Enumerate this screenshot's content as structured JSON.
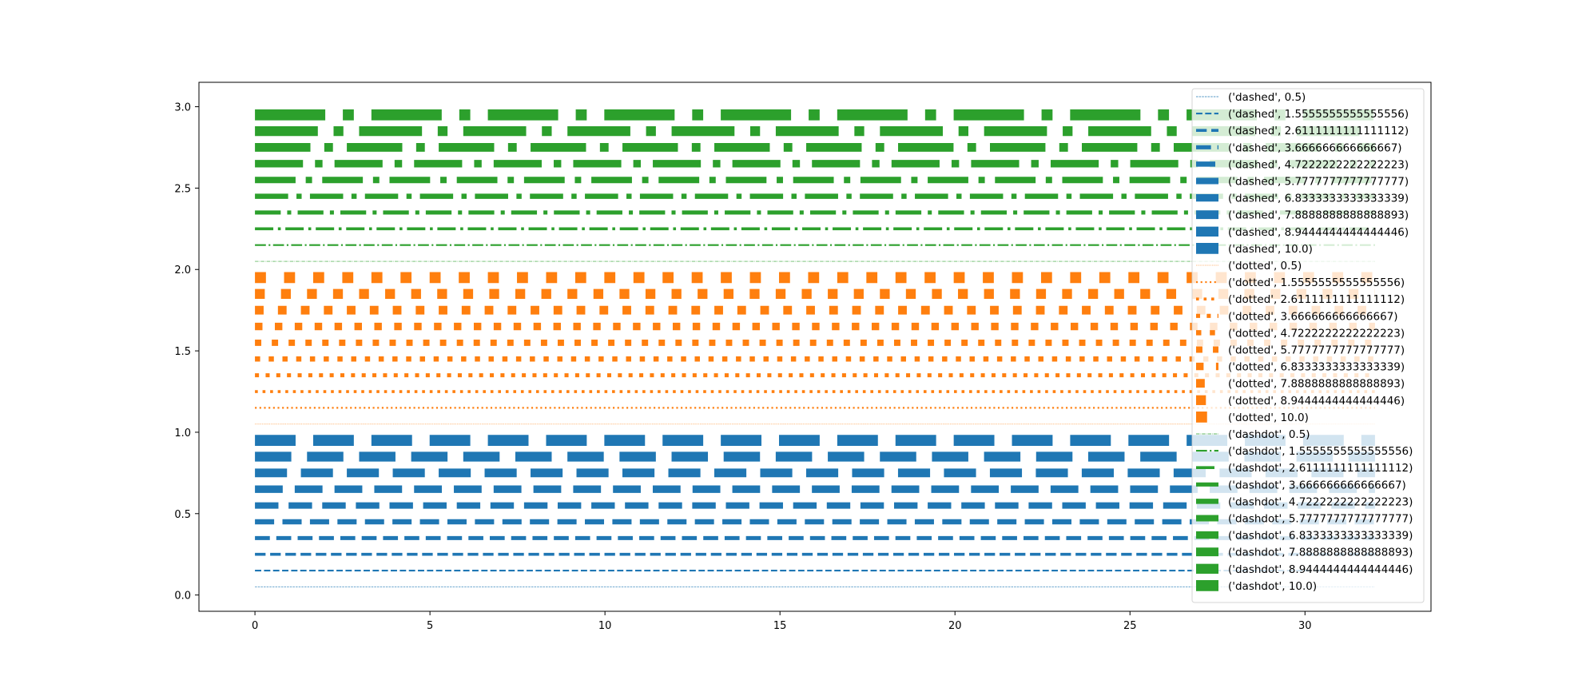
{
  "chart_data": {
    "type": "line",
    "title": "",
    "xlabel": "",
    "ylabel": "",
    "xlim": [
      -1.6,
      33.6
    ],
    "ylim": [
      -0.1,
      3.15
    ],
    "x": [
      0,
      32
    ],
    "xticks": [
      0,
      5,
      10,
      15,
      20,
      25,
      30
    ],
    "yticks": [
      0.0,
      0.5,
      1.0,
      1.5,
      2.0,
      2.5,
      3.0
    ],
    "xtick_labels": [
      "0",
      "5",
      "10",
      "15",
      "20",
      "25",
      "30"
    ],
    "ytick_labels": [
      "0.0",
      "0.5",
      "1.0",
      "1.5",
      "2.0",
      "2.5",
      "3.0"
    ],
    "grid": false,
    "legend_position": "right",
    "colors": {
      "dashed": "#1f77b4",
      "dotted": "#ff7f0e",
      "dashdot": "#2ca02c"
    },
    "series": [
      {
        "name": "('dashed', 0.5)",
        "style": "dashed",
        "linewidth": 0.5,
        "y": 0.05
      },
      {
        "name": "('dashed', 1.5555555555555556)",
        "style": "dashed",
        "linewidth": 1.5555555555555556,
        "y": 0.15
      },
      {
        "name": "('dashed', 2.6111111111111112)",
        "style": "dashed",
        "linewidth": 2.611111111111111,
        "y": 0.25
      },
      {
        "name": "('dashed', 3.666666666666667)",
        "style": "dashed",
        "linewidth": 3.666666666666667,
        "y": 0.35
      },
      {
        "name": "('dashed', 4.7222222222222223)",
        "style": "dashed",
        "linewidth": 4.722222222222222,
        "y": 0.45
      },
      {
        "name": "('dashed', 5.7777777777777777)",
        "style": "dashed",
        "linewidth": 5.777777777777778,
        "y": 0.55
      },
      {
        "name": "('dashed', 6.8333333333333339)",
        "style": "dashed",
        "linewidth": 6.833333333333334,
        "y": 0.65
      },
      {
        "name": "('dashed', 7.8888888888888893)",
        "style": "dashed",
        "linewidth": 7.888888888888889,
        "y": 0.75
      },
      {
        "name": "('dashed', 8.9444444444444446)",
        "style": "dashed",
        "linewidth": 8.944444444444445,
        "y": 0.85
      },
      {
        "name": "('dashed', 10.0)",
        "style": "dashed",
        "linewidth": 10.0,
        "y": 0.95
      },
      {
        "name": "('dotted', 0.5)",
        "style": "dotted",
        "linewidth": 0.5,
        "y": 1.05
      },
      {
        "name": "('dotted', 1.5555555555555556)",
        "style": "dotted",
        "linewidth": 1.5555555555555556,
        "y": 1.15
      },
      {
        "name": "('dotted', 2.6111111111111112)",
        "style": "dotted",
        "linewidth": 2.611111111111111,
        "y": 1.25
      },
      {
        "name": "('dotted', 3.666666666666667)",
        "style": "dotted",
        "linewidth": 3.666666666666667,
        "y": 1.35
      },
      {
        "name": "('dotted', 4.7222222222222223)",
        "style": "dotted",
        "linewidth": 4.722222222222222,
        "y": 1.45
      },
      {
        "name": "('dotted', 5.7777777777777777)",
        "style": "dotted",
        "linewidth": 5.777777777777778,
        "y": 1.55
      },
      {
        "name": "('dotted', 6.8333333333333339)",
        "style": "dotted",
        "linewidth": 6.833333333333334,
        "y": 1.65
      },
      {
        "name": "('dotted', 7.8888888888888893)",
        "style": "dotted",
        "linewidth": 7.888888888888889,
        "y": 1.75
      },
      {
        "name": "('dotted', 8.9444444444444446)",
        "style": "dotted",
        "linewidth": 8.944444444444445,
        "y": 1.85
      },
      {
        "name": "('dotted', 10.0)",
        "style": "dotted",
        "linewidth": 10.0,
        "y": 1.95
      },
      {
        "name": "('dashdot', 0.5)",
        "style": "dashdot",
        "linewidth": 0.5,
        "y": 2.05
      },
      {
        "name": "('dashdot', 1.5555555555555556)",
        "style": "dashdot",
        "linewidth": 1.5555555555555556,
        "y": 2.15
      },
      {
        "name": "('dashdot', 2.6111111111111112)",
        "style": "dashdot",
        "linewidth": 2.611111111111111,
        "y": 2.25
      },
      {
        "name": "('dashdot', 3.666666666666667)",
        "style": "dashdot",
        "linewidth": 3.666666666666667,
        "y": 2.35
      },
      {
        "name": "('dashdot', 4.7222222222222223)",
        "style": "dashdot",
        "linewidth": 4.722222222222222,
        "y": 2.45
      },
      {
        "name": "('dashdot', 5.7777777777777777)",
        "style": "dashdot",
        "linewidth": 5.777777777777778,
        "y": 2.55
      },
      {
        "name": "('dashdot', 6.8333333333333339)",
        "style": "dashdot",
        "linewidth": 6.833333333333334,
        "y": 2.65
      },
      {
        "name": "('dashdot', 7.8888888888888893)",
        "style": "dashdot",
        "linewidth": 7.888888888888889,
        "y": 2.75
      },
      {
        "name": "('dashdot', 8.9444444444444446)",
        "style": "dashdot",
        "linewidth": 8.944444444444445,
        "y": 2.85
      },
      {
        "name": "('dashdot', 10.0)",
        "style": "dashdot",
        "linewidth": 10.0,
        "y": 2.95
      }
    ]
  }
}
